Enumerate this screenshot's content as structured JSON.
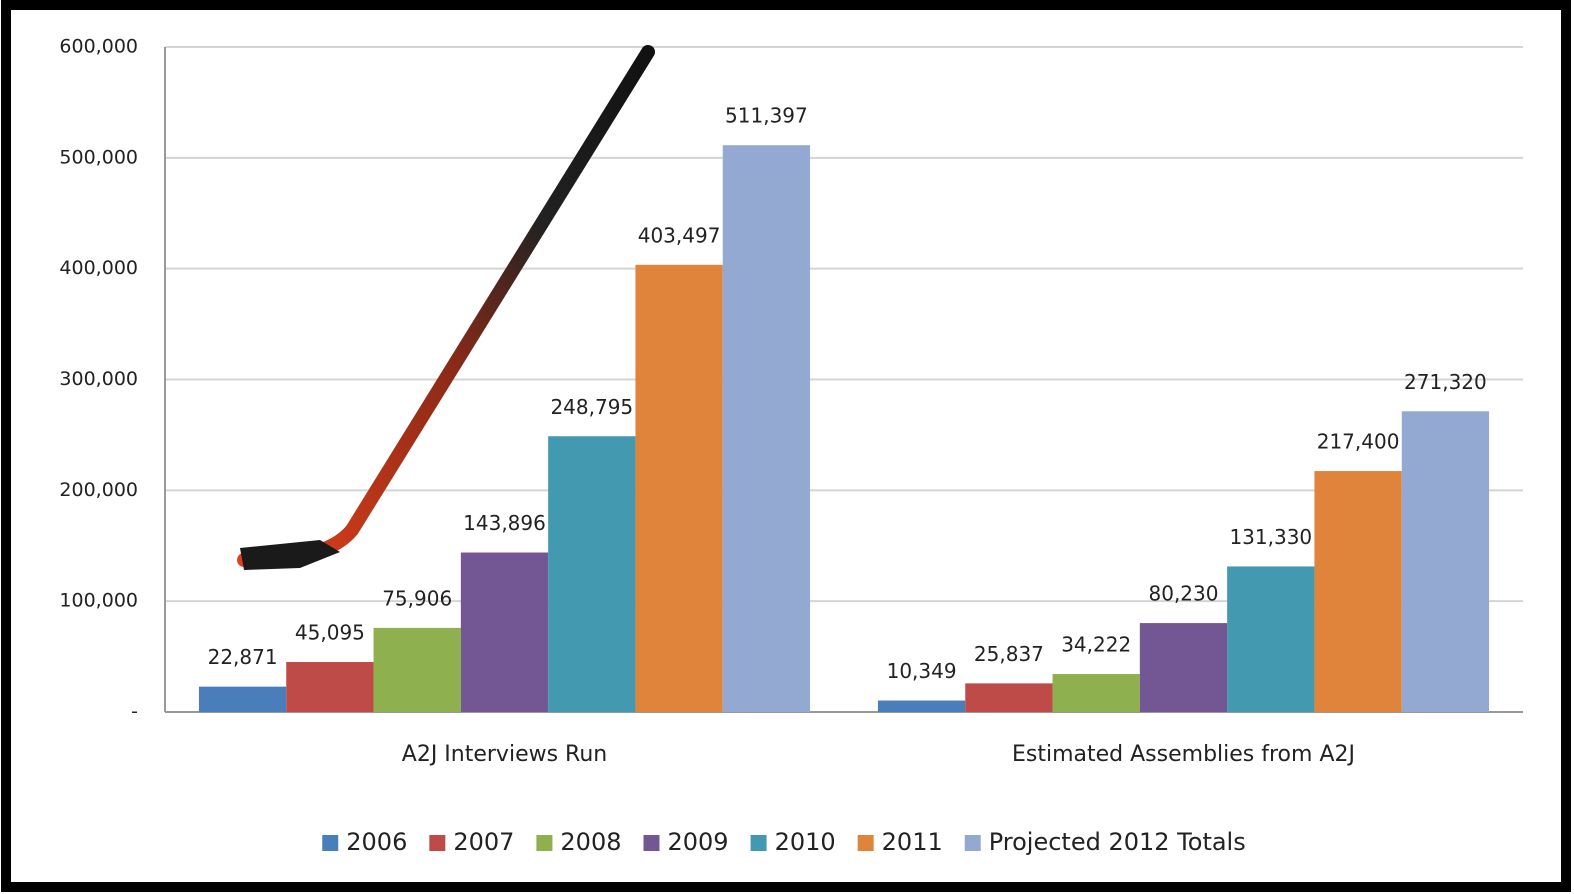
{
  "chart_data": {
    "type": "bar",
    "categories": [
      "A2J Interviews Run",
      "Estimated Assemblies from A2J"
    ],
    "series": [
      {
        "name": "2006",
        "color": "#4a7ebb",
        "values": [
          22871,
          10349
        ],
        "value_labels": [
          "22,871",
          "10,349"
        ]
      },
      {
        "name": "2007",
        "color": "#be4b48",
        "values": [
          45095,
          25837
        ],
        "value_labels": [
          "45,095",
          "25,837"
        ]
      },
      {
        "name": "2008",
        "color": "#8eb04e",
        "values": [
          75906,
          34222
        ],
        "value_labels": [
          "75,906",
          "34,222"
        ]
      },
      {
        "name": "2009",
        "color": "#735794",
        "values": [
          143896,
          80230
        ],
        "value_labels": [
          "143,896",
          "80,230"
        ]
      },
      {
        "name": "2010",
        "color": "#4299b0",
        "values": [
          248795,
          131330
        ],
        "value_labels": [
          "248,795",
          "131,330"
        ]
      },
      {
        "name": "2011",
        "color": "#e0843c",
        "values": [
          403497,
          217400
        ],
        "value_labels": [
          "403,497",
          "217,400"
        ]
      },
      {
        "name": "Projected 2012 Totals",
        "color": "#93a9d2",
        "values": [
          511397,
          271320
        ],
        "value_labels": [
          "511,397",
          "271,320"
        ]
      }
    ],
    "ylim": [
      0,
      600000
    ],
    "yticks": [
      {
        "value": 0,
        "label": "-"
      },
      {
        "value": 100000,
        "label": "100,000"
      },
      {
        "value": 200000,
        "label": "200,000"
      },
      {
        "value": 300000,
        "label": "300,000"
      },
      {
        "value": 400000,
        "label": "400,000"
      },
      {
        "value": 500000,
        "label": "500,000"
      },
      {
        "value": 600000,
        "label": "600,000"
      }
    ],
    "grid": true,
    "legend": "bottom"
  }
}
